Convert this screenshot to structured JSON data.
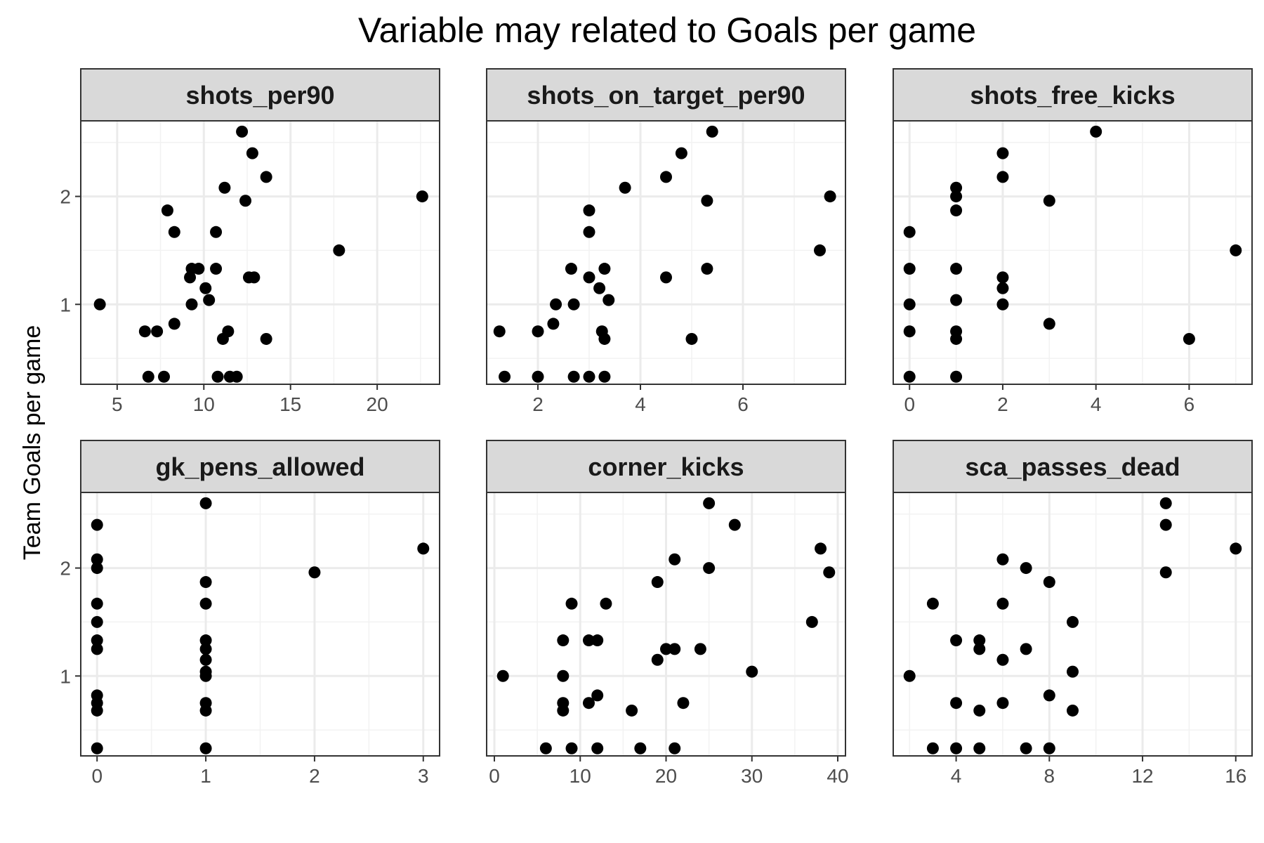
{
  "chart_data": {
    "type": "scatter",
    "title": "Variable may related to Goals per game",
    "ylabel": "Team Goals per game",
    "grid": true,
    "y_ticks": [
      1,
      2
    ],
    "ylim": [
      0.26,
      2.7
    ],
    "panels": [
      {
        "name": "shots_per90",
        "xlim": [
          2.9,
          23.6
        ],
        "x_ticks": [
          5,
          10,
          15,
          20
        ],
        "points": [
          [
            4.0,
            1.0
          ],
          [
            6.6,
            0.75
          ],
          [
            6.8,
            0.33
          ],
          [
            7.3,
            0.75
          ],
          [
            7.7,
            0.33
          ],
          [
            7.9,
            1.87
          ],
          [
            8.3,
            1.67
          ],
          [
            8.3,
            0.82
          ],
          [
            9.2,
            1.25
          ],
          [
            9.3,
            1.33
          ],
          [
            9.3,
            1.0
          ],
          [
            9.7,
            1.33
          ],
          [
            10.1,
            1.15
          ],
          [
            10.3,
            1.04
          ],
          [
            10.7,
            1.67
          ],
          [
            10.7,
            1.33
          ],
          [
            10.8,
            0.33
          ],
          [
            11.1,
            0.68
          ],
          [
            11.2,
            2.08
          ],
          [
            11.4,
            0.75
          ],
          [
            11.5,
            0.33
          ],
          [
            11.9,
            0.33
          ],
          [
            12.2,
            2.6
          ],
          [
            12.4,
            1.96
          ],
          [
            12.6,
            1.25
          ],
          [
            12.8,
            2.4
          ],
          [
            12.9,
            1.25
          ],
          [
            13.6,
            2.18
          ],
          [
            13.6,
            0.68
          ],
          [
            17.8,
            1.5
          ],
          [
            22.6,
            2.0
          ]
        ]
      },
      {
        "name": "shots_on_target_per90",
        "xlim": [
          1.0,
          8.0
        ],
        "x_ticks": [
          2,
          4,
          6
        ],
        "points": [
          [
            1.25,
            0.75
          ],
          [
            1.35,
            0.33
          ],
          [
            2.0,
            0.75
          ],
          [
            2.0,
            0.33
          ],
          [
            2.3,
            0.82
          ],
          [
            2.35,
            1.0
          ],
          [
            2.65,
            1.33
          ],
          [
            2.7,
            1.0
          ],
          [
            2.7,
            0.33
          ],
          [
            3.0,
            1.87
          ],
          [
            3.0,
            1.67
          ],
          [
            3.0,
            1.25
          ],
          [
            3.0,
            0.33
          ],
          [
            3.2,
            1.15
          ],
          [
            3.25,
            0.75
          ],
          [
            3.3,
            1.33
          ],
          [
            3.3,
            0.68
          ],
          [
            3.3,
            0.33
          ],
          [
            3.38,
            1.04
          ],
          [
            3.7,
            2.08
          ],
          [
            4.5,
            2.18
          ],
          [
            4.5,
            1.25
          ],
          [
            4.8,
            2.4
          ],
          [
            5.0,
            0.68
          ],
          [
            5.3,
            1.96
          ],
          [
            5.3,
            1.33
          ],
          [
            5.4,
            2.6
          ],
          [
            7.5,
            1.5
          ],
          [
            7.7,
            2.0
          ]
        ]
      },
      {
        "name": "shots_free_kicks",
        "xlim": [
          -0.35,
          7.35
        ],
        "x_ticks": [
          0,
          2,
          4,
          6
        ],
        "points": [
          [
            0,
            1.67
          ],
          [
            0,
            1.33
          ],
          [
            0,
            1.0
          ],
          [
            0,
            0.75
          ],
          [
            0,
            0.33
          ],
          [
            1,
            2.08
          ],
          [
            1,
            2.0
          ],
          [
            1,
            1.87
          ],
          [
            1,
            1.33
          ],
          [
            1,
            1.04
          ],
          [
            1,
            0.75
          ],
          [
            1,
            0.68
          ],
          [
            1,
            0.33
          ],
          [
            2,
            2.4
          ],
          [
            2,
            2.18
          ],
          [
            2,
            1.25
          ],
          [
            2,
            1.15
          ],
          [
            2,
            1.0
          ],
          [
            3,
            1.96
          ],
          [
            3,
            0.82
          ],
          [
            4,
            2.6
          ],
          [
            6,
            0.68
          ],
          [
            7,
            1.5
          ]
        ]
      },
      {
        "name": "gk_pens_allowed",
        "xlim": [
          -0.15,
          3.15
        ],
        "x_ticks": [
          0,
          1,
          2,
          3
        ],
        "points": [
          [
            0,
            2.4
          ],
          [
            0,
            2.08
          ],
          [
            0,
            2.0
          ],
          [
            0,
            1.67
          ],
          [
            0,
            1.5
          ],
          [
            0,
            1.33
          ],
          [
            0,
            1.25
          ],
          [
            0,
            0.82
          ],
          [
            0,
            0.75
          ],
          [
            0,
            0.68
          ],
          [
            0,
            0.33
          ],
          [
            1,
            2.6
          ],
          [
            1,
            1.87
          ],
          [
            1,
            1.67
          ],
          [
            1,
            1.33
          ],
          [
            1,
            1.25
          ],
          [
            1,
            1.15
          ],
          [
            1,
            1.04
          ],
          [
            1,
            1.0
          ],
          [
            1,
            0.75
          ],
          [
            1,
            0.68
          ],
          [
            1,
            0.33
          ],
          [
            2,
            1.96
          ],
          [
            3,
            2.18
          ]
        ]
      },
      {
        "name": "corner_kicks",
        "xlim": [
          -0.9,
          40.9
        ],
        "x_ticks": [
          0,
          10,
          20,
          30,
          40
        ],
        "points": [
          [
            1,
            1.0
          ],
          [
            6,
            0.33
          ],
          [
            8,
            1.33
          ],
          [
            8,
            1.0
          ],
          [
            8,
            0.75
          ],
          [
            8,
            0.68
          ],
          [
            9,
            1.67
          ],
          [
            9,
            0.33
          ],
          [
            11,
            1.33
          ],
          [
            11,
            0.75
          ],
          [
            12,
            1.33
          ],
          [
            12,
            0.82
          ],
          [
            12,
            0.33
          ],
          [
            13,
            1.67
          ],
          [
            16,
            0.68
          ],
          [
            17,
            0.33
          ],
          [
            19,
            1.87
          ],
          [
            19,
            1.15
          ],
          [
            20,
            1.25
          ],
          [
            21,
            2.08
          ],
          [
            21,
            1.25
          ],
          [
            21,
            0.33
          ],
          [
            22,
            0.75
          ],
          [
            24,
            1.25
          ],
          [
            25,
            2.6
          ],
          [
            25,
            2.0
          ],
          [
            28,
            2.4
          ],
          [
            30,
            1.04
          ],
          [
            37,
            1.5
          ],
          [
            38,
            2.18
          ],
          [
            39,
            1.96
          ]
        ]
      },
      {
        "name": "sca_passes_dead",
        "xlim": [
          1.3,
          16.7
        ],
        "x_ticks": [
          4,
          8,
          12,
          16
        ],
        "points": [
          [
            2,
            1.0
          ],
          [
            3,
            1.67
          ],
          [
            3,
            0.33
          ],
          [
            4,
            1.33
          ],
          [
            4,
            0.75
          ],
          [
            4,
            0.33
          ],
          [
            5,
            1.33
          ],
          [
            5,
            1.25
          ],
          [
            5,
            0.68
          ],
          [
            5,
            0.33
          ],
          [
            6,
            2.08
          ],
          [
            6,
            1.67
          ],
          [
            6,
            1.15
          ],
          [
            6,
            0.75
          ],
          [
            7,
            2.0
          ],
          [
            7,
            1.25
          ],
          [
            7,
            0.33
          ],
          [
            8,
            1.87
          ],
          [
            8,
            0.82
          ],
          [
            8,
            0.33
          ],
          [
            9,
            1.5
          ],
          [
            9,
            1.04
          ],
          [
            9,
            0.68
          ],
          [
            13,
            2.6
          ],
          [
            13,
            2.4
          ],
          [
            13,
            1.96
          ],
          [
            16,
            2.18
          ]
        ]
      }
    ]
  }
}
